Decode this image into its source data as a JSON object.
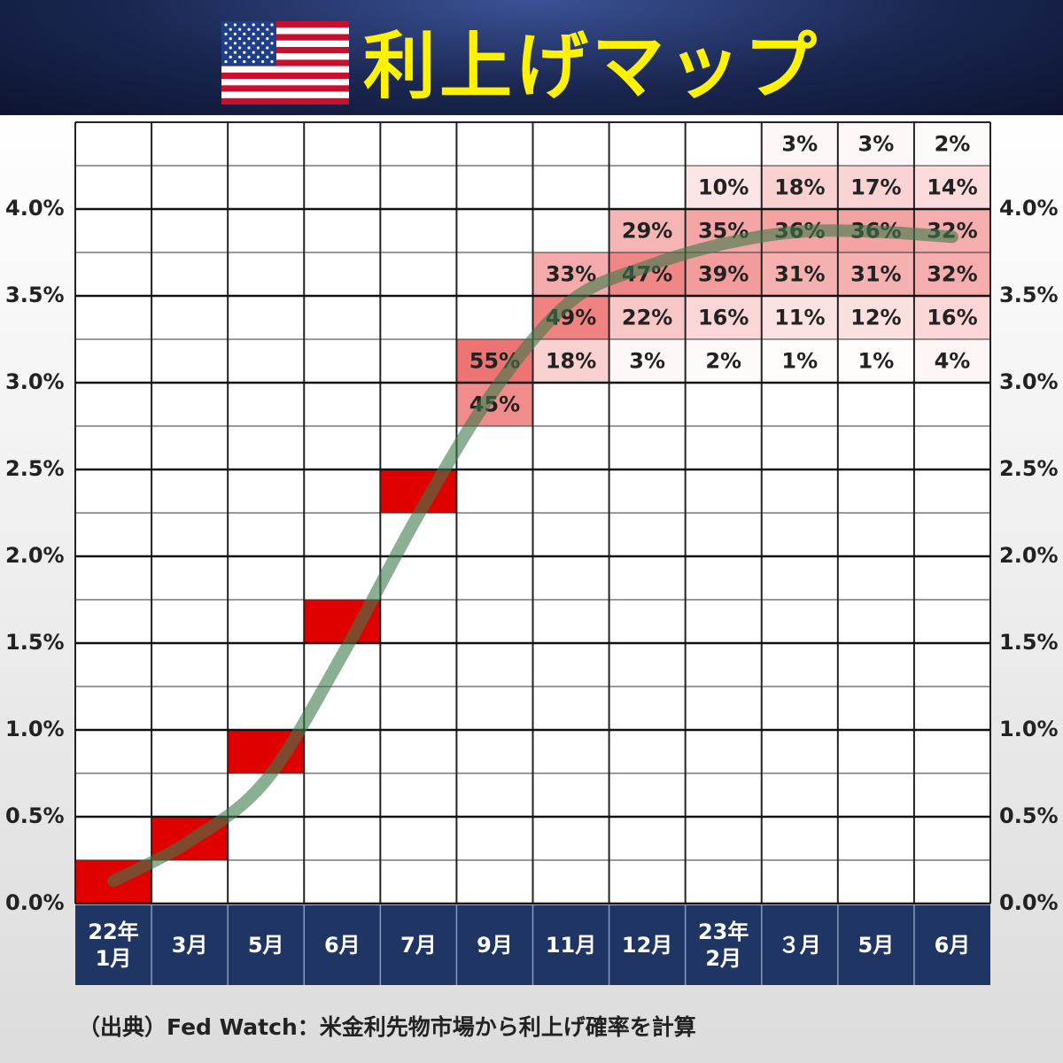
{
  "chart_data": {
    "type": "heatmap",
    "title": "利上げマップ",
    "source": "（出典）Fed Watch：米金利先物市場から利上げ確率を計算",
    "categories": [
      "22年\n1月",
      "3月",
      "5月",
      "6月",
      "7月",
      "9月",
      "11月",
      "12月",
      "23年\n2月",
      "３月",
      "5月",
      "6月"
    ],
    "ylim": [
      0,
      4.5
    ],
    "yticks": [
      {
        "value": 0,
        "label": "0.0%"
      },
      {
        "value": 0.5,
        "label": "0.5%"
      },
      {
        "value": 1,
        "label": "1.0%"
      },
      {
        "value": 1.5,
        "label": "1.5%"
      },
      {
        "value": 2,
        "label": "2.0%"
      },
      {
        "value": 2.5,
        "label": "2.5%"
      },
      {
        "value": 3,
        "label": "3.0%"
      },
      {
        "value": 3.5,
        "label": "3.5%"
      },
      {
        "value": 4,
        "label": "4.0%"
      }
    ],
    "minor_yticks": [
      0.25,
      0.75,
      1.25,
      1.75,
      2.25,
      2.75,
      3.25,
      3.75,
      4.25
    ],
    "color": "#e00000",
    "cells": [
      [
        {
          "y": 0,
          "value": 100
        }
      ],
      [
        {
          "y": 0.25,
          "value": 100
        }
      ],
      [
        {
          "y": 0.75,
          "value": 100
        }
      ],
      [
        {
          "y": 1.5,
          "value": 100
        }
      ],
      [
        {
          "y": 2.25,
          "value": 100
        }
      ],
      [
        {
          "y": 3,
          "value": 55,
          "value_label": "55%"
        },
        {
          "y": 2.75,
          "value": 45,
          "value_label": "45%"
        }
      ],
      [
        {
          "y": 3.5,
          "value": 33,
          "value_label": "33%"
        },
        {
          "y": 3.25,
          "value": 49,
          "value_label": "49%"
        },
        {
          "y": 3,
          "value": 18,
          "value_label": "18%"
        }
      ],
      [
        {
          "y": 3.75,
          "value": 29,
          "value_label": "29%"
        },
        {
          "y": 3.5,
          "value": 47,
          "value_label": "47%"
        },
        {
          "y": 3.25,
          "value": 22,
          "value_label": "22%"
        },
        {
          "y": 3,
          "value": 3,
          "value_label": "3%"
        }
      ],
      [
        {
          "y": 4,
          "value": 10,
          "value_label": "10%"
        },
        {
          "y": 3.75,
          "value": 35,
          "value_label": "35%"
        },
        {
          "y": 3.5,
          "value": 39,
          "value_label": "39%"
        },
        {
          "y": 3.25,
          "value": 16,
          "value_label": "16%"
        },
        {
          "y": 3,
          "value": 2,
          "value_label": "2%"
        }
      ],
      [
        {
          "y": 4.25,
          "value": 3,
          "value_label": "3%"
        },
        {
          "y": 4,
          "value": 18,
          "value_label": "18%"
        },
        {
          "y": 3.75,
          "value": 36,
          "value_label": "36%"
        },
        {
          "y": 3.5,
          "value": 31,
          "value_label": "31%"
        },
        {
          "y": 3.25,
          "value": 11,
          "value_label": "11%"
        },
        {
          "y": 3,
          "value": 1,
          "value_label": "1%"
        }
      ],
      [
        {
          "y": 4.25,
          "value": 3,
          "value_label": "3%"
        },
        {
          "y": 4,
          "value": 17,
          "value_label": "17%"
        },
        {
          "y": 3.75,
          "value": 36,
          "value_label": "36%"
        },
        {
          "y": 3.5,
          "value": 31,
          "value_label": "31%"
        },
        {
          "y": 3.25,
          "value": 12,
          "value_label": "12%"
        },
        {
          "y": 3,
          "value": 1,
          "value_label": "1%"
        }
      ],
      [
        {
          "y": 4.25,
          "value": 2,
          "value_label": "2%"
        },
        {
          "y": 4,
          "value": 14,
          "value_label": "14%"
        },
        {
          "y": 3.75,
          "value": 32,
          "value_label": "32%"
        },
        {
          "y": 3.5,
          "value": 32,
          "value_label": "32%"
        },
        {
          "y": 3.25,
          "value": 16,
          "value_label": "16%"
        },
        {
          "y": 3,
          "value": 4,
          "value_label": "4%"
        }
      ]
    ],
    "line": {
      "color": "#3c7a4a",
      "values": [
        0.13,
        0.36,
        0.71,
        1.43,
        2.24,
        2.96,
        3.47,
        3.67,
        3.8,
        3.87,
        3.87,
        3.84
      ]
    }
  }
}
